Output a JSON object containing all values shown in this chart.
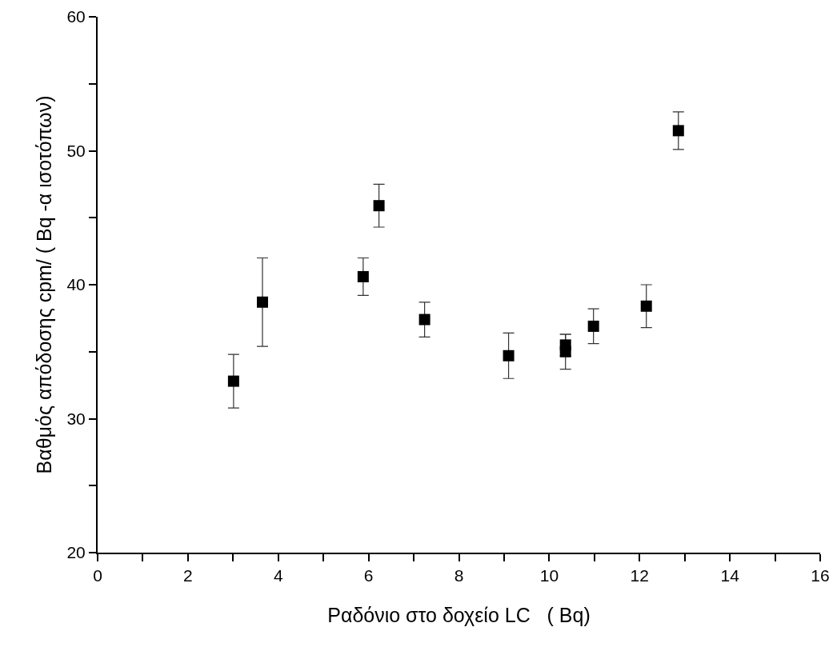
{
  "chart_data": {
    "type": "scatter",
    "xlabel": "Ραδόνιο στο δοχείο LC   ( Bq)",
    "ylabel": "Βαθμός απόδοσης cpm/ ( Bq -α ισοτόπων)",
    "x": [
      3.01,
      3.65,
      5.88,
      6.23,
      7.24,
      9.1,
      10.36,
      10.36,
      10.98,
      12.15,
      12.86
    ],
    "values": [
      32.8,
      38.7,
      40.6,
      45.9,
      37.4,
      34.7,
      35.5,
      35.0,
      36.9,
      38.4,
      51.5
    ],
    "errors": [
      2.0,
      3.3,
      1.4,
      1.6,
      1.3,
      1.7,
      0.8,
      1.3,
      1.3,
      1.6,
      1.4
    ],
    "color": "#000000",
    "marker": "square",
    "xlim": [
      0,
      16
    ],
    "ylim": [
      20,
      60
    ],
    "xticks": [
      0,
      {
        "value": 1,
        "label": null
      },
      2,
      {
        "value": 3,
        "label": null
      },
      4,
      {
        "value": 5,
        "label": null
      },
      6,
      {
        "value": 7,
        "label": null
      },
      8,
      {
        "value": 9,
        "label": null
      },
      10,
      {
        "value": 11,
        "label": null
      },
      12,
      {
        "value": 13,
        "label": null
      },
      14,
      {
        "value": 15,
        "label": null
      },
      16
    ],
    "yticks": [
      20,
      {
        "value": 25,
        "label": null
      },
      30,
      {
        "value": 35,
        "label": null
      },
      40,
      {
        "value": 45,
        "label": null
      },
      50,
      {
        "value": 55,
        "label": null
      },
      60
    ],
    "grid": false,
    "legend": false
  }
}
